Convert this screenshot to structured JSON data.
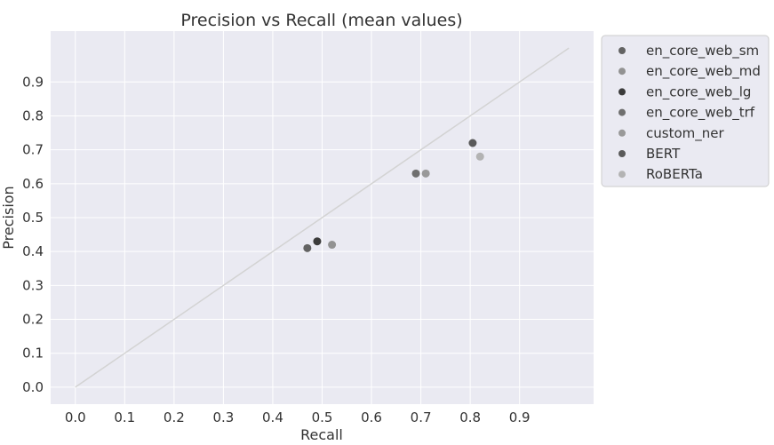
{
  "chart_data": {
    "type": "scatter",
    "title": "Precision vs Recall (mean values)",
    "xlabel": "Recall",
    "ylabel": "Precision",
    "xlim": [
      -0.05,
      1.05
    ],
    "ylim": [
      -0.05,
      1.05
    ],
    "xticks": [
      0.0,
      0.1,
      0.2,
      0.3,
      0.4,
      0.5,
      0.6,
      0.7,
      0.8,
      0.9
    ],
    "yticks": [
      0.0,
      0.1,
      0.2,
      0.3,
      0.4,
      0.5,
      0.6,
      0.7,
      0.8,
      0.9
    ],
    "xtick_labels": [
      "0.0",
      "0.1",
      "0.2",
      "0.3",
      "0.4",
      "0.5",
      "0.6",
      "0.7",
      "0.8",
      "0.9"
    ],
    "ytick_labels": [
      "0.0",
      "0.1",
      "0.2",
      "0.3",
      "0.4",
      "0.5",
      "0.6",
      "0.7",
      "0.8",
      "0.9"
    ],
    "grid": true,
    "legend_position": "outside-top-right",
    "reference_line": {
      "from": [
        0.0,
        0.0
      ],
      "to": [
        1.0,
        1.0
      ],
      "color": "#d3d3d3"
    },
    "background": "#eaeaf2",
    "series": [
      {
        "name": "en_core_web_sm",
        "x": 0.47,
        "y": 0.41,
        "color": "#636363"
      },
      {
        "name": "en_core_web_md",
        "x": 0.52,
        "y": 0.42,
        "color": "#929292"
      },
      {
        "name": "en_core_web_lg",
        "x": 0.49,
        "y": 0.43,
        "color": "#3b3b3b"
      },
      {
        "name": "en_core_web_trf",
        "x": 0.69,
        "y": 0.63,
        "color": "#6f6f6f"
      },
      {
        "name": "custom_ner",
        "x": 0.71,
        "y": 0.63,
        "color": "#999999"
      },
      {
        "name": "BERT",
        "x": 0.805,
        "y": 0.72,
        "color": "#5a5a5a"
      },
      {
        "name": "RoBERTa",
        "x": 0.82,
        "y": 0.68,
        "color": "#b3b3b3"
      }
    ]
  }
}
